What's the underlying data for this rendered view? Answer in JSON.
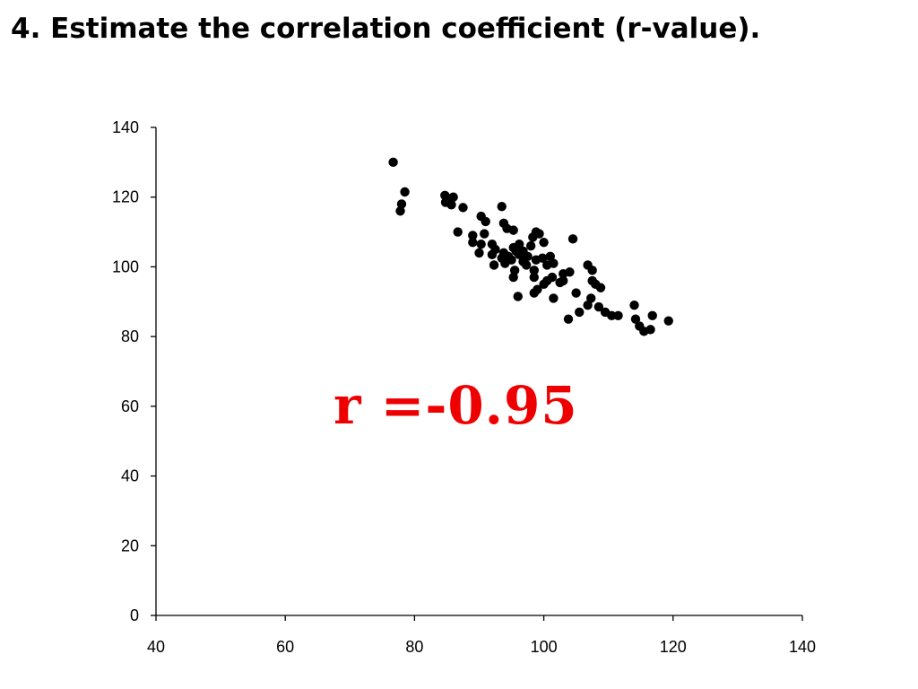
{
  "slide": {
    "title": "4. Estimate the correlation coefficient (r-value)."
  },
  "annotation": {
    "text": "r =-0.95",
    "color": "#ee0000"
  },
  "chart_data": {
    "type": "scatter",
    "title": "",
    "xlabel": "",
    "ylabel": "",
    "xlim": [
      40,
      140
    ],
    "ylim": [
      0,
      140
    ],
    "xticks": [
      40,
      60,
      80,
      100,
      120,
      140
    ],
    "yticks": [
      0,
      20,
      40,
      60,
      80,
      100,
      120,
      140
    ],
    "grid": false,
    "legend": "none",
    "marker_color": "#000000",
    "points": [
      [
        76.7,
        130
      ],
      [
        78.5,
        121.5
      ],
      [
        78,
        118
      ],
      [
        77.8,
        116
      ],
      [
        84.7,
        120.5
      ],
      [
        85.3,
        119.5
      ],
      [
        86,
        120
      ],
      [
        84.8,
        118.5
      ],
      [
        85.7,
        117.8
      ],
      [
        87.5,
        117
      ],
      [
        86.7,
        110
      ],
      [
        89,
        109
      ],
      [
        89,
        107
      ],
      [
        90.3,
        106.5
      ],
      [
        90.3,
        114.5
      ],
      [
        91,
        113
      ],
      [
        90.8,
        109.5
      ],
      [
        92,
        106.5
      ],
      [
        92,
        103.5
      ],
      [
        92.5,
        105
      ],
      [
        92.3,
        100.5
      ],
      [
        90,
        104
      ],
      [
        93.5,
        117.3
      ],
      [
        93.8,
        112.5
      ],
      [
        94.3,
        111
      ],
      [
        95.3,
        110.5
      ],
      [
        95.3,
        105.5
      ],
      [
        94.5,
        103
      ],
      [
        94,
        101
      ],
      [
        93.8,
        104
      ],
      [
        93.5,
        102.5
      ],
      [
        95,
        102
      ],
      [
        95.7,
        104.5
      ],
      [
        96.2,
        106.5
      ],
      [
        96.2,
        103.5
      ],
      [
        96.8,
        104.5
      ],
      [
        95.5,
        99
      ],
      [
        95.3,
        97
      ],
      [
        96.8,
        101.5
      ],
      [
        97.5,
        103
      ],
      [
        97.3,
        100.5
      ],
      [
        98.3,
        108.5
      ],
      [
        98.8,
        110
      ],
      [
        99.3,
        109.5
      ],
      [
        98,
        106
      ],
      [
        98.5,
        99
      ],
      [
        98.5,
        97
      ],
      [
        98.5,
        92.5
      ],
      [
        99,
        93.5
      ],
      [
        98.8,
        102
      ],
      [
        99.8,
        102.5
      ],
      [
        100,
        107
      ],
      [
        100.5,
        100.5
      ],
      [
        101,
        103
      ],
      [
        101.5,
        101
      ],
      [
        100.5,
        96
      ],
      [
        100,
        95
      ],
      [
        101.3,
        97
      ],
      [
        101.5,
        91
      ],
      [
        96,
        91.5
      ],
      [
        103,
        98
      ],
      [
        103,
        96
      ],
      [
        102.5,
        95.5
      ],
      [
        104,
        98.5
      ],
      [
        104.5,
        108
      ],
      [
        103.8,
        85
      ],
      [
        105,
        92.5
      ],
      [
        105.5,
        87
      ],
      [
        106.8,
        100.5
      ],
      [
        107.5,
        99
      ],
      [
        107.3,
        91
      ],
      [
        106.8,
        89
      ],
      [
        107.5,
        96
      ],
      [
        108,
        95
      ],
      [
        108.8,
        94
      ],
      [
        108.5,
        88.5
      ],
      [
        109.5,
        87
      ],
      [
        110.5,
        86
      ],
      [
        111.5,
        86
      ],
      [
        114,
        89
      ],
      [
        114.2,
        85
      ],
      [
        114.8,
        83
      ],
      [
        115.5,
        81.5
      ],
      [
        116.5,
        82
      ],
      [
        116.8,
        86
      ],
      [
        119.3,
        84.5
      ]
    ]
  }
}
